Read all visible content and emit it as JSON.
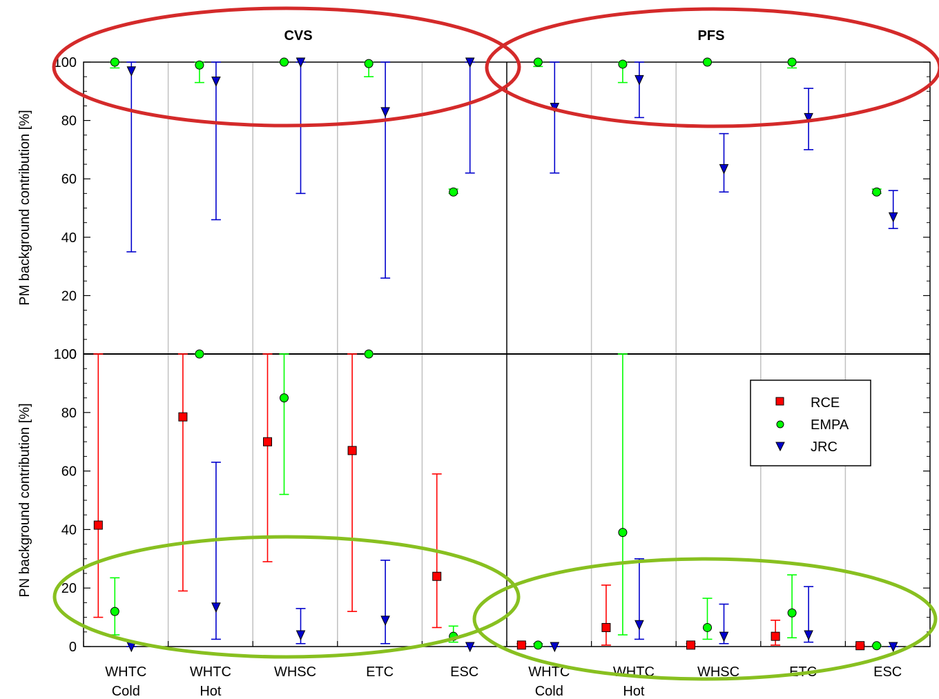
{
  "colors": {
    "RCE": "#ff0000",
    "EMPA": "#00ff00",
    "JRC": "#0000cc",
    "highlight_top": "#d42a2a",
    "highlight_bottom": "#88c020",
    "grid": "#c0c0c0"
  },
  "icons": {
    "RCE": "square-marker",
    "EMPA": "circle-marker",
    "JRC": "triangle-down-marker"
  },
  "panels": {
    "left_title": "CVS",
    "right_title": "PFS"
  },
  "chart_data": {
    "type": "scatter",
    "xlabel": "",
    "categories": [
      [
        "WHTC",
        "Cold"
      ],
      [
        "WHTC",
        "Hot"
      ],
      [
        "WHSC"
      ],
      [
        "ETC"
      ],
      [
        "ESC"
      ]
    ],
    "ylim": [
      0,
      100
    ],
    "yticks": [
      0,
      20,
      40,
      60,
      80,
      100
    ],
    "grid": "vertical",
    "legend": {
      "placement": "bottom-right panel, top-right",
      "entries": [
        "RCE",
        "EMPA",
        "JRC"
      ]
    },
    "highlights": [
      {
        "row": "top",
        "color": "red",
        "panels": [
          "CVS",
          "PFS"
        ]
      },
      {
        "row": "bottom",
        "color": "green",
        "panels": [
          "CVS",
          "PFS"
        ]
      }
    ],
    "rows": [
      {
        "ylabel": "PM background contribution [%]",
        "panels": [
          {
            "title": "CVS",
            "series": [
              {
                "name": "EMPA",
                "points": [
                  {
                    "cat": 0,
                    "y": 100,
                    "low": 98,
                    "high": 100
                  },
                  {
                    "cat": 1,
                    "y": 99,
                    "low": 93,
                    "high": 100
                  },
                  {
                    "cat": 2,
                    "y": 100,
                    "low": 100,
                    "high": 100
                  },
                  {
                    "cat": 3,
                    "y": 99.5,
                    "low": 95,
                    "high": 100
                  },
                  {
                    "cat": 4,
                    "y": 55.5,
                    "low": 55,
                    "high": 56.5
                  }
                ]
              },
              {
                "name": "JRC",
                "points": [
                  {
                    "cat": 0,
                    "y": 97,
                    "low": 35,
                    "high": 100
                  },
                  {
                    "cat": 1,
                    "y": 93.5,
                    "low": 46,
                    "high": 100
                  },
                  {
                    "cat": 2,
                    "y": 100,
                    "low": 55,
                    "high": 100
                  },
                  {
                    "cat": 3,
                    "y": 83,
                    "low": 26,
                    "high": 100
                  },
                  {
                    "cat": 4,
                    "y": 100,
                    "low": 62,
                    "high": 100
                  }
                ]
              }
            ]
          },
          {
            "title": "PFS",
            "series": [
              {
                "name": "EMPA",
                "points": [
                  {
                    "cat": 0,
                    "y": 100,
                    "low": 98.5,
                    "high": 100
                  },
                  {
                    "cat": 1,
                    "y": 99.3,
                    "low": 93,
                    "high": 100
                  },
                  {
                    "cat": 2,
                    "y": 100,
                    "low": 100,
                    "high": 100
                  },
                  {
                    "cat": 3,
                    "y": 100,
                    "low": 98,
                    "high": 100
                  }
                ]
              },
              {
                "name": "JRC",
                "points": [
                  {
                    "cat": 0,
                    "y": 84.5,
                    "low": 62,
                    "high": 100
                  },
                  {
                    "cat": 1,
                    "y": 94,
                    "low": 81,
                    "high": 100
                  },
                  {
                    "cat": 2,
                    "y": 63.5,
                    "low": 55.5,
                    "high": 75.5
                  },
                  {
                    "cat": 3,
                    "y": 81,
                    "low": 70,
                    "high": 91
                  },
                  {
                    "cat": 4,
                    "y": 47,
                    "low": 43,
                    "high": 56
                  }
                ]
              },
              {
                "name": "EMPA",
                "points": [
                  {
                    "cat": 4,
                    "y": 55.5,
                    "low": 55,
                    "high": 56.5
                  }
                ]
              }
            ]
          }
        ]
      },
      {
        "ylabel": "PN background contribution [%]",
        "panels": [
          {
            "title": "CVS",
            "series": [
              {
                "name": "RCE",
                "points": [
                  {
                    "cat": 0,
                    "y": 41.5,
                    "low": 10,
                    "high": 100
                  },
                  {
                    "cat": 1,
                    "y": 78.5,
                    "low": 19,
                    "high": 100
                  },
                  {
                    "cat": 2,
                    "y": 70,
                    "low": 29,
                    "high": 100
                  },
                  {
                    "cat": 3,
                    "y": 67,
                    "low": 12,
                    "high": 100
                  },
                  {
                    "cat": 4,
                    "y": 24,
                    "low": 6.5,
                    "high": 59
                  }
                ]
              },
              {
                "name": "EMPA",
                "points": [
                  {
                    "cat": 0,
                    "y": 12,
                    "low": 4,
                    "high": 23.5
                  },
                  {
                    "cat": 1,
                    "y": 100,
                    "low": 100,
                    "high": 100
                  },
                  {
                    "cat": 2,
                    "y": 85,
                    "low": 52,
                    "high": 100
                  },
                  {
                    "cat": 3,
                    "y": 100,
                    "low": 100,
                    "high": 100
                  },
                  {
                    "cat": 4,
                    "y": 3.5,
                    "low": 1.5,
                    "high": 7
                  }
                ]
              },
              {
                "name": "JRC",
                "points": [
                  {
                    "cat": 0,
                    "y": 0,
                    "low": 0,
                    "high": 0
                  },
                  {
                    "cat": 1,
                    "y": 13.5,
                    "low": 2.5,
                    "high": 63
                  },
                  {
                    "cat": 2,
                    "y": 4,
                    "low": 1,
                    "high": 13
                  },
                  {
                    "cat": 3,
                    "y": 9,
                    "low": 1,
                    "high": 29.5
                  },
                  {
                    "cat": 4,
                    "y": 0,
                    "low": 0,
                    "high": 0
                  }
                ]
              }
            ]
          },
          {
            "title": "PFS",
            "series": [
              {
                "name": "RCE",
                "points": [
                  {
                    "cat": 0,
                    "y": 0.5,
                    "low": 0,
                    "high": 1
                  },
                  {
                    "cat": 1,
                    "y": 6.5,
                    "low": 0.5,
                    "high": 21
                  },
                  {
                    "cat": 2,
                    "y": 0.5,
                    "low": 0,
                    "high": 1
                  },
                  {
                    "cat": 3,
                    "y": 3.5,
                    "low": 0.5,
                    "high": 9
                  },
                  {
                    "cat": 4,
                    "y": 0.3,
                    "low": 0,
                    "high": 0.5
                  }
                ]
              },
              {
                "name": "EMPA",
                "points": [
                  {
                    "cat": 0,
                    "y": 0.5,
                    "low": 0,
                    "high": 1
                  },
                  {
                    "cat": 1,
                    "y": 39,
                    "low": 4,
                    "high": 100
                  },
                  {
                    "cat": 2,
                    "y": 6.5,
                    "low": 2.5,
                    "high": 16.5
                  },
                  {
                    "cat": 3,
                    "y": 11.5,
                    "low": 3,
                    "high": 24.5
                  },
                  {
                    "cat": 4,
                    "y": 0.3,
                    "low": 0,
                    "high": 0.5
                  }
                ]
              },
              {
                "name": "JRC",
                "points": [
                  {
                    "cat": 0,
                    "y": 0,
                    "low": 0,
                    "high": 0
                  },
                  {
                    "cat": 1,
                    "y": 7.5,
                    "low": 2.5,
                    "high": 30
                  },
                  {
                    "cat": 2,
                    "y": 3.5,
                    "low": 1,
                    "high": 14.5
                  },
                  {
                    "cat": 3,
                    "y": 4,
                    "low": 1.5,
                    "high": 20.5
                  },
                  {
                    "cat": 4,
                    "y": 0,
                    "low": 0,
                    "high": 0
                  }
                ]
              }
            ]
          }
        ]
      }
    ]
  }
}
